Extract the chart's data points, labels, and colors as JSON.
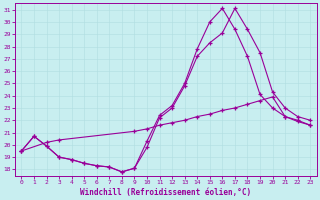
{
  "title": "",
  "xlabel": "Windchill (Refroidissement éolien,°C)",
  "bg_color": "#c8eef0",
  "line_color": "#990099",
  "grid_color": "#b0dde0",
  "xlim": [
    -0.5,
    23.5
  ],
  "ylim": [
    17.5,
    31.5
  ],
  "xticks": [
    0,
    1,
    2,
    3,
    4,
    5,
    6,
    7,
    8,
    9,
    10,
    11,
    12,
    13,
    14,
    15,
    16,
    17,
    18,
    19,
    20,
    21,
    22,
    23
  ],
  "yticks": [
    18,
    19,
    20,
    21,
    22,
    23,
    24,
    25,
    26,
    27,
    28,
    29,
    30,
    31
  ],
  "line1_x": [
    0,
    1,
    2,
    3,
    4,
    5,
    6,
    7,
    8,
    9,
    10,
    11,
    12,
    13,
    14,
    15,
    16,
    17,
    18,
    19,
    20,
    21,
    22,
    23
  ],
  "line1_y": [
    19.5,
    20.7,
    19.9,
    19.0,
    18.8,
    18.5,
    18.3,
    18.2,
    17.8,
    18.1,
    19.8,
    22.2,
    23.0,
    24.8,
    27.2,
    28.3,
    29.1,
    31.1,
    29.4,
    27.5,
    24.3,
    23.0,
    22.3,
    22.0
  ],
  "line2_x": [
    0,
    1,
    2,
    3,
    4,
    5,
    6,
    7,
    8,
    9,
    10,
    11,
    12,
    13,
    14,
    15,
    16,
    17,
    18,
    19,
    20,
    21,
    22,
    23
  ],
  "line2_y": [
    19.5,
    20.7,
    19.9,
    19.0,
    18.8,
    18.5,
    18.3,
    18.2,
    17.8,
    18.1,
    20.3,
    22.4,
    23.2,
    25.0,
    27.8,
    30.0,
    31.1,
    29.4,
    27.2,
    24.1,
    23.0,
    22.3,
    22.0,
    21.6
  ],
  "line3_x": [
    0,
    2,
    3,
    9,
    10,
    11,
    12,
    13,
    14,
    15,
    16,
    17,
    18,
    19,
    20,
    21,
    22,
    23
  ],
  "line3_y": [
    19.5,
    20.2,
    20.4,
    21.1,
    21.3,
    21.6,
    21.8,
    22.0,
    22.3,
    22.5,
    22.8,
    23.0,
    23.3,
    23.6,
    23.9,
    22.3,
    21.9,
    21.6
  ]
}
